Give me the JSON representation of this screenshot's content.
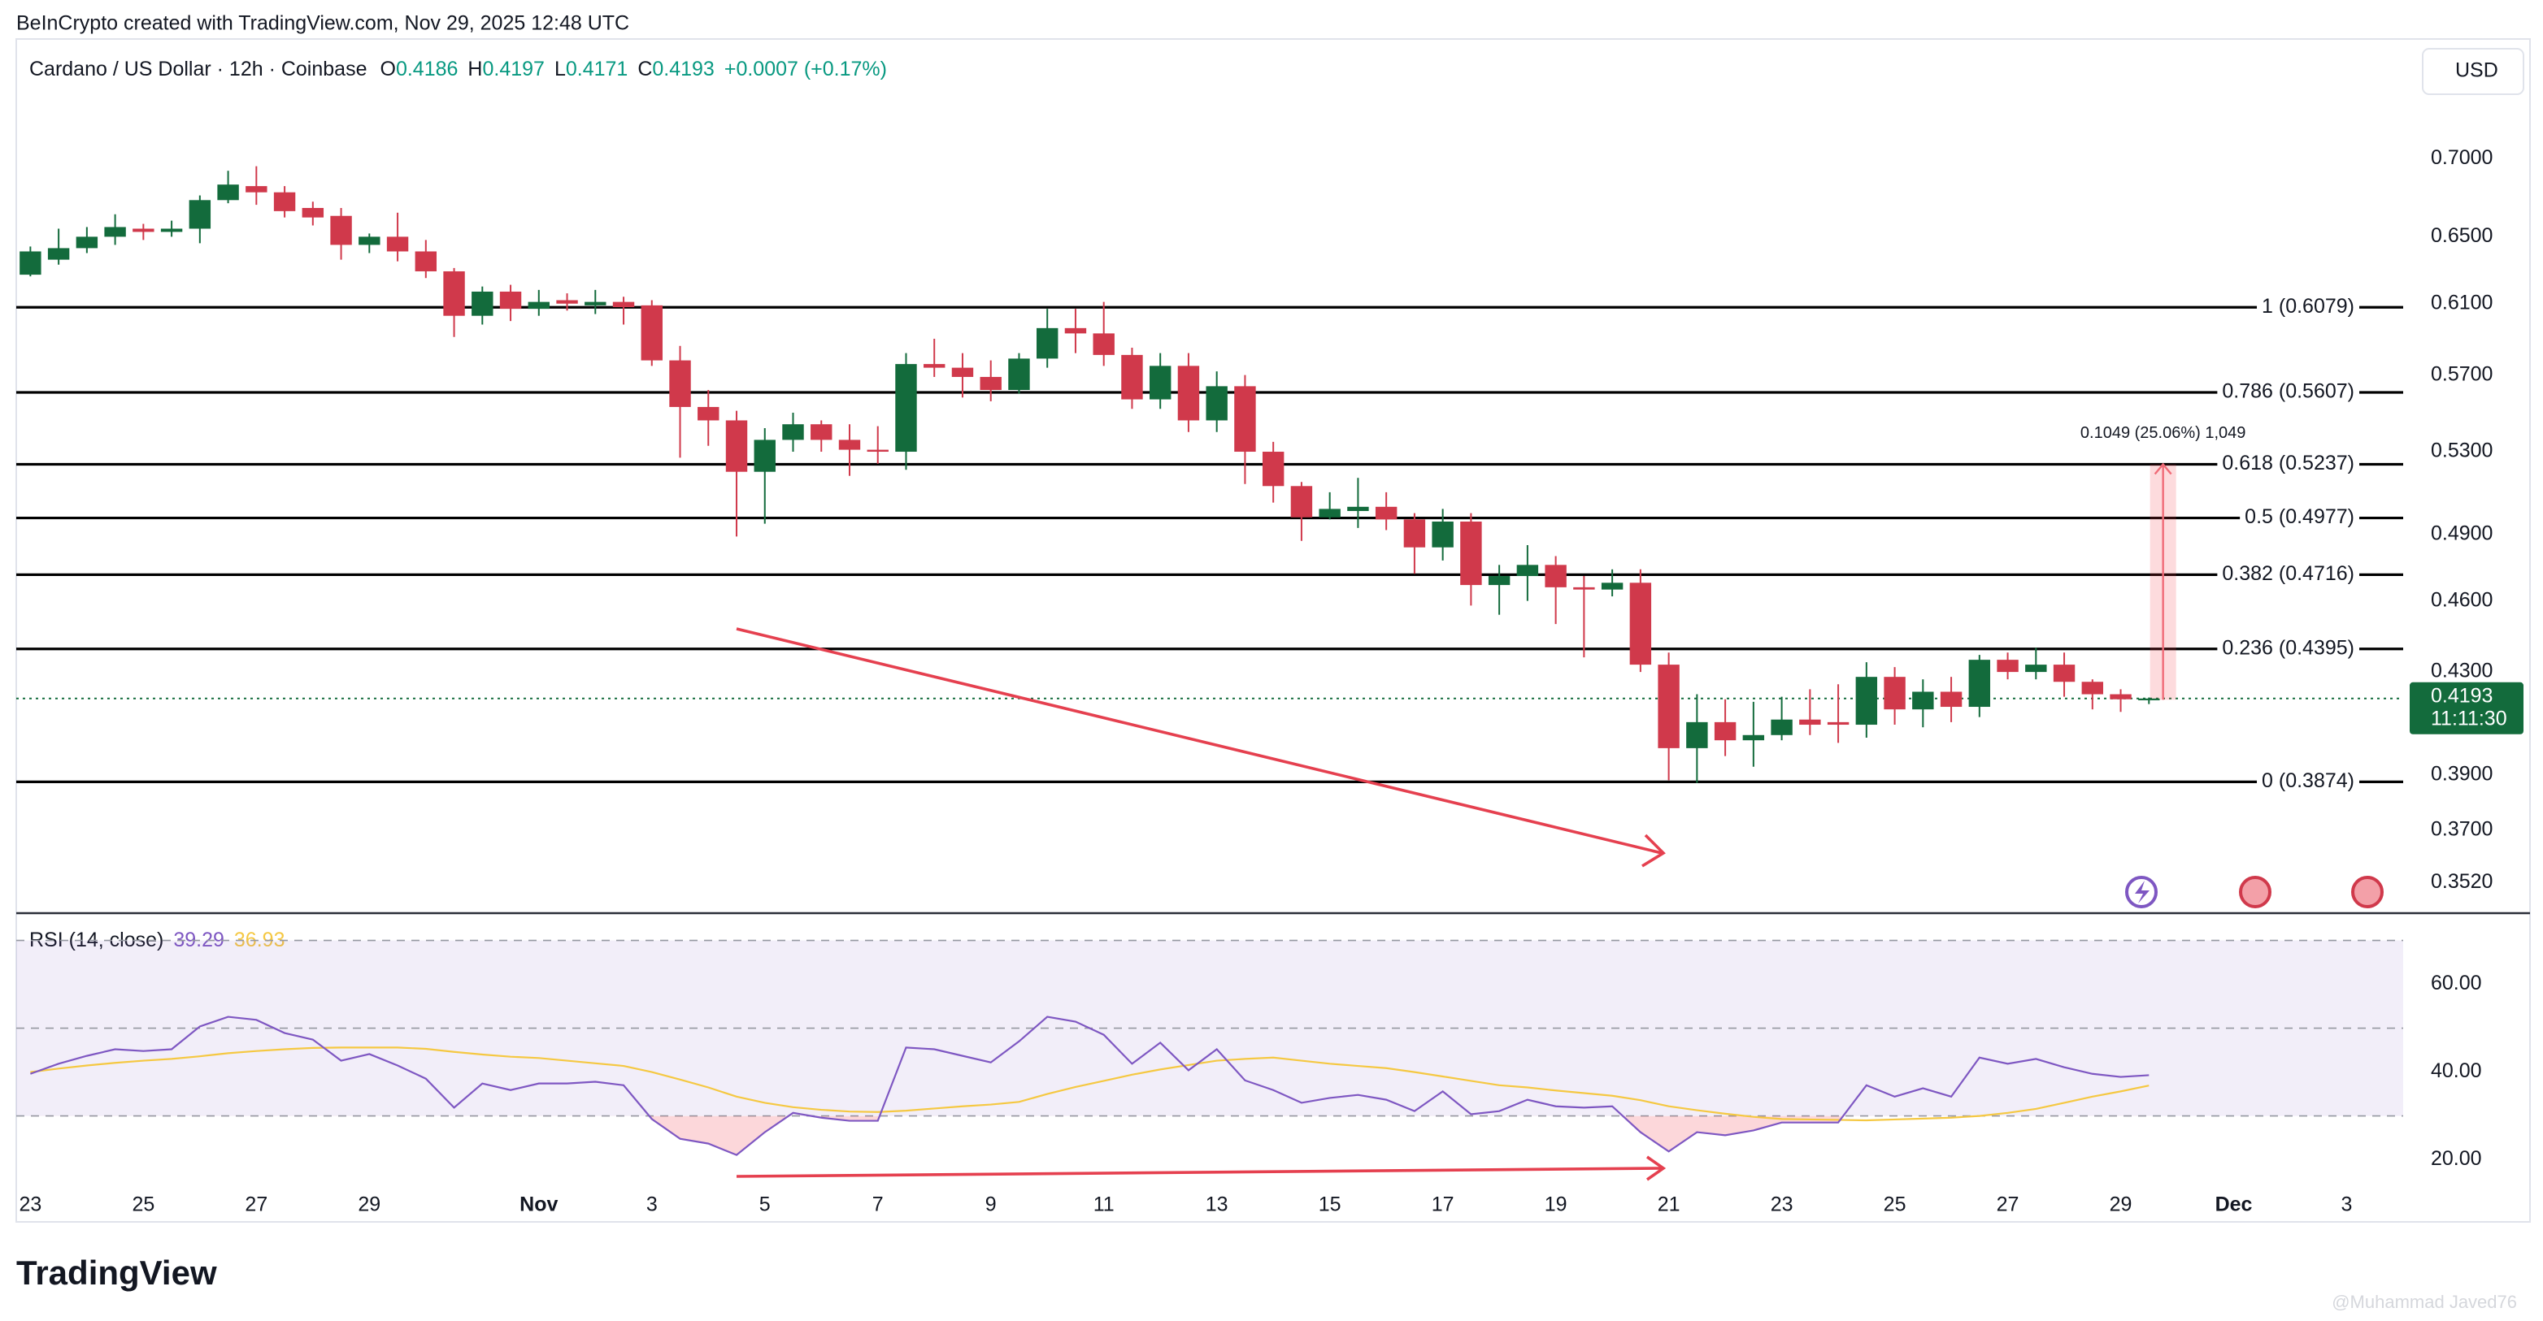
{
  "header": "BeInCrypto created with TradingView.com, Nov 29, 2025 12:48 UTC",
  "currency": "USD",
  "logo": "TradingView",
  "watermark": "@Muhammad Javed76",
  "chart_data": {
    "type": "candlestick",
    "symbol": "Cardano / US Dollar · 12h · Coinbase",
    "ohlc": [
      {
        "key": "O",
        "value": "0.4186"
      },
      {
        "key": "H",
        "value": "0.4197"
      },
      {
        "key": "L",
        "value": "0.4171"
      },
      {
        "key": "C",
        "value": "0.4193"
      }
    ],
    "change": "+0.0007 (+0.17%)",
    "up_color": "#136b3c",
    "down_color": "#d0394b",
    "log_scale": true,
    "open": [
      0.627,
      0.636,
      0.643,
      0.65,
      0.655,
      0.653,
      0.655,
      0.673,
      0.682,
      0.678,
      0.668,
      0.663,
      0.645,
      0.65,
      0.641,
      0.629,
      0.603,
      0.617,
      0.607,
      0.612,
      0.609,
      0.611,
      0.609,
      0.578,
      0.553,
      0.546,
      0.52,
      0.536,
      0.544,
      0.536,
      0.531,
      0.53,
      0.576,
      0.574,
      0.569,
      0.562,
      0.579,
      0.596,
      0.593,
      0.581,
      0.557,
      0.575,
      0.546,
      0.564,
      0.53,
      0.513,
      0.498,
      0.501,
      0.503,
      0.497,
      0.484,
      0.496,
      0.467,
      0.471,
      0.476,
      0.466,
      0.465,
      0.468,
      0.433,
      0.4,
      0.41,
      0.403,
      0.405,
      0.411,
      0.41,
      0.409,
      0.428,
      0.415,
      0.422,
      0.416,
      0.435,
      0.43,
      0.433,
      0.426,
      0.421,
      0.4186
    ],
    "high": [
      0.644,
      0.655,
      0.656,
      0.664,
      0.658,
      0.66,
      0.676,
      0.692,
      0.695,
      0.682,
      0.672,
      0.668,
      0.652,
      0.665,
      0.648,
      0.631,
      0.62,
      0.621,
      0.618,
      0.616,
      0.618,
      0.614,
      0.612,
      0.586,
      0.562,
      0.551,
      0.542,
      0.55,
      0.546,
      0.544,
      0.543,
      0.582,
      0.59,
      0.582,
      0.578,
      0.582,
      0.607,
      0.607,
      0.611,
      0.585,
      0.582,
      0.582,
      0.572,
      0.57,
      0.535,
      0.515,
      0.51,
      0.517,
      0.51,
      0.5,
      0.502,
      0.5,
      0.476,
      0.485,
      0.48,
      0.471,
      0.474,
      0.474,
      0.438,
      0.421,
      0.419,
      0.418,
      0.42,
      0.423,
      0.425,
      0.434,
      0.432,
      0.427,
      0.428,
      0.437,
      0.438,
      0.44,
      0.438,
      0.427,
      0.423,
      0.4197
    ],
    "low": [
      0.626,
      0.633,
      0.64,
      0.645,
      0.648,
      0.65,
      0.646,
      0.671,
      0.67,
      0.662,
      0.657,
      0.636,
      0.64,
      0.635,
      0.625,
      0.591,
      0.598,
      0.6,
      0.603,
      0.606,
      0.604,
      0.598,
      0.575,
      0.527,
      0.533,
      0.489,
      0.495,
      0.53,
      0.53,
      0.518,
      0.524,
      0.521,
      0.569,
      0.558,
      0.556,
      0.56,
      0.574,
      0.582,
      0.575,
      0.552,
      0.552,
      0.54,
      0.54,
      0.514,
      0.505,
      0.487,
      0.497,
      0.493,
      0.492,
      0.472,
      0.478,
      0.458,
      0.454,
      0.46,
      0.45,
      0.436,
      0.462,
      0.43,
      0.388,
      0.387,
      0.397,
      0.393,
      0.403,
      0.405,
      0.402,
      0.404,
      0.409,
      0.408,
      0.41,
      0.412,
      0.427,
      0.427,
      0.42,
      0.415,
      0.414,
      0.4171
    ],
    "close": [
      0.641,
      0.643,
      0.65,
      0.656,
      0.653,
      0.655,
      0.673,
      0.683,
      0.678,
      0.666,
      0.662,
      0.645,
      0.65,
      0.641,
      0.629,
      0.603,
      0.617,
      0.607,
      0.611,
      0.61,
      0.611,
      0.608,
      0.578,
      0.553,
      0.546,
      0.52,
      0.536,
      0.544,
      0.536,
      0.531,
      0.53,
      0.576,
      0.574,
      0.569,
      0.562,
      0.579,
      0.596,
      0.593,
      0.581,
      0.557,
      0.575,
      0.546,
      0.564,
      0.53,
      0.513,
      0.498,
      0.502,
      0.503,
      0.497,
      0.484,
      0.496,
      0.467,
      0.471,
      0.476,
      0.466,
      0.465,
      0.468,
      0.433,
      0.4,
      0.41,
      0.403,
      0.405,
      0.411,
      0.409,
      0.409,
      0.428,
      0.415,
      0.422,
      0.416,
      0.435,
      0.43,
      0.433,
      0.426,
      0.421,
      0.419,
      0.4193
    ],
    "xlim": [
      -0.5,
      84
    ],
    "xticks": [
      {
        "value": 0,
        "label": "23"
      },
      {
        "value": 4,
        "label": "25"
      },
      {
        "value": 8,
        "label": "27"
      },
      {
        "value": 12,
        "label": "29"
      },
      {
        "value": 18,
        "label": "Nov"
      },
      {
        "value": 22,
        "label": "3"
      },
      {
        "value": 26,
        "label": "5"
      },
      {
        "value": 30,
        "label": "7"
      },
      {
        "value": 34,
        "label": "9"
      },
      {
        "value": 38,
        "label": "11"
      },
      {
        "value": 42,
        "label": "13"
      },
      {
        "value": 46,
        "label": "15"
      },
      {
        "value": 50,
        "label": "17"
      },
      {
        "value": 54,
        "label": "19"
      },
      {
        "value": 58,
        "label": "21"
      },
      {
        "value": 62,
        "label": "23"
      },
      {
        "value": 66,
        "label": "25"
      },
      {
        "value": 70,
        "label": "27"
      },
      {
        "value": 74,
        "label": "29"
      },
      {
        "value": 78,
        "label": "Dec"
      },
      {
        "value": 82,
        "label": "3"
      }
    ],
    "ylim": [
      0.342,
      0.777
    ],
    "yticks": [
      {
        "value": 0.7,
        "label": "0.7000"
      },
      {
        "value": 0.65,
        "label": "0.6500"
      },
      {
        "value": 0.61,
        "label": "0.6100"
      },
      {
        "value": 0.57,
        "label": "0.5700"
      },
      {
        "value": 0.53,
        "label": "0.5300"
      },
      {
        "value": 0.49,
        "label": "0.4900"
      },
      {
        "value": 0.46,
        "label": "0.4600"
      },
      {
        "value": 0.43,
        "label": "0.4300"
      },
      {
        "value": 0.39,
        "label": "0.3900"
      },
      {
        "value": 0.37,
        "label": "0.3700"
      },
      {
        "value": 0.352,
        "label": "0.3520"
      }
    ],
    "fib_levels": [
      {
        "value": 0.6079,
        "label": "1 (0.6079)"
      },
      {
        "value": 0.5607,
        "label": "0.786 (0.5607)"
      },
      {
        "value": 0.5237,
        "label": "0.618 (0.5237)"
      },
      {
        "value": 0.4977,
        "label": "0.5 (0.4977)"
      },
      {
        "value": 0.4716,
        "label": "0.382 (0.4716)"
      },
      {
        "value": 0.4395,
        "label": "0.236 (0.4395)"
      },
      {
        "value": 0.3874,
        "label": "0 (0.3874)"
      }
    ],
    "price_tag": {
      "value": 0.4193,
      "label": "0.4193",
      "countdown": "11:11:30",
      "color": "#136b3c"
    },
    "measure": {
      "from": 0.4188,
      "to": 0.5237,
      "label": "0.1049 (25.06%) 1,049"
    },
    "rsi": {
      "title": "RSI (14, close)",
      "value_label": "39.29",
      "ma_label": "36.93",
      "color": "#7e57c2",
      "ma_color": "#f5c842",
      "values": [
        39.6,
        41.9,
        43.7,
        45.2,
        44.8,
        45.2,
        50.4,
        52.6,
        51.9,
        48.9,
        47.4,
        42.6,
        44.1,
        41.5,
        38.5,
        31.9,
        37.4,
        35.9,
        37.4,
        37.4,
        37.8,
        37.0,
        29.3,
        24.8,
        23.7,
        21.1,
        26.3,
        30.7,
        29.6,
        28.9,
        28.9,
        45.6,
        45.2,
        43.7,
        42.2,
        47.0,
        52.6,
        51.5,
        48.5,
        41.9,
        46.7,
        40.4,
        45.2,
        38.1,
        35.9,
        33.0,
        34.1,
        34.8,
        33.7,
        31.1,
        35.6,
        30.4,
        31.1,
        33.7,
        32.2,
        31.9,
        32.2,
        26.3,
        21.9,
        26.3,
        25.6,
        26.7,
        28.5,
        28.5,
        28.5,
        37.0,
        34.4,
        36.3,
        34.4,
        43.3,
        41.9,
        43.0,
        41.1,
        39.6,
        38.9,
        39.29
      ],
      "ma_values": [
        40.0,
        40.8,
        41.5,
        42.1,
        42.6,
        43.0,
        43.6,
        44.3,
        44.8,
        45.2,
        45.5,
        45.6,
        45.6,
        45.6,
        45.3,
        44.6,
        44.0,
        43.5,
        43.2,
        42.6,
        42.0,
        41.4,
        40.0,
        38.3,
        36.5,
        34.4,
        33.0,
        32.0,
        31.4,
        31.0,
        30.9,
        31.2,
        31.7,
        32.2,
        32.6,
        33.2,
        35.0,
        36.6,
        38.0,
        39.4,
        40.6,
        41.6,
        42.6,
        43.0,
        43.3,
        42.6,
        41.9,
        41.4,
        40.9,
        40.0,
        39.0,
        38.0,
        37.0,
        36.5,
        35.8,
        35.2,
        34.6,
        33.6,
        32.2,
        31.3,
        30.5,
        29.8,
        29.3,
        29.2,
        29.1,
        29.0,
        29.2,
        29.4,
        29.6,
        30.0,
        30.7,
        31.6,
        33.0,
        34.4,
        35.6,
        36.93
      ],
      "ylim": [
        14,
        74
      ],
      "yticks": [
        {
          "value": 20,
          "label": "20.00"
        },
        {
          "value": 40,
          "label": "40.00"
        },
        {
          "value": 60,
          "label": "60.00"
        }
      ],
      "bands": [
        30,
        50,
        70
      ]
    }
  }
}
